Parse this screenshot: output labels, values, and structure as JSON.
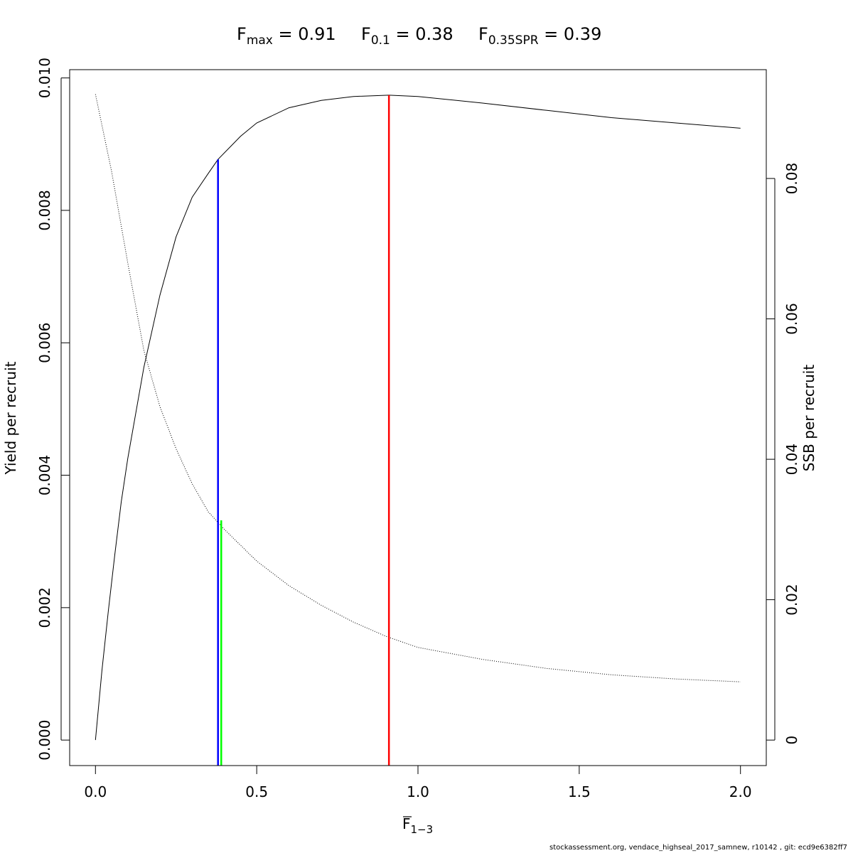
{
  "chart_data": {
    "type": "line",
    "title": {
      "fmax": {
        "base": "F",
        "sub": "max",
        "rest": " = 0.91"
      },
      "f01": {
        "base": "F",
        "sub": "0.1",
        "rest": " = 0.38"
      },
      "f35": {
        "base": "F",
        "sub": "0.35SPR",
        "rest": " = 0.39"
      }
    },
    "xlabel": {
      "base": "F",
      "sub": "1−3"
    },
    "ylabel_left": "Yield per recruit",
    "ylabel_right": "SSB per recruit",
    "xlim": [
      -0.08,
      2.08
    ],
    "ylim_left": [
      -0.000385,
      0.010125
    ],
    "ylim_right": [
      -0.00363,
      0.0955
    ],
    "x_ticks": [
      0.0,
      0.5,
      1.0,
      1.5,
      2.0
    ],
    "x_tick_labels": [
      "0.0",
      "0.5",
      "1.0",
      "1.5",
      "2.0"
    ],
    "y_left_ticks": [
      0.0,
      0.002,
      0.004,
      0.006,
      0.008,
      0.01
    ],
    "y_left_tick_labels": [
      "0.000",
      "0.002",
      "0.004",
      "0.006",
      "0.008",
      "0.010"
    ],
    "y_right_ticks": [
      0,
      0.02,
      0.04,
      0.06,
      0.08
    ],
    "y_right_tick_labels": [
      "0",
      "0.02",
      "0.04",
      "0.06",
      "0.08"
    ],
    "series": [
      {
        "axis": "left",
        "style": "solid",
        "color": "#000000",
        "x": [
          0,
          0.02,
          0.04,
          0.06,
          0.08,
          0.1,
          0.15,
          0.2,
          0.25,
          0.3,
          0.35,
          0.38,
          0.45,
          0.5,
          0.6,
          0.7,
          0.8,
          0.91,
          1.0,
          1.2,
          1.4,
          1.6,
          1.8,
          2.0
        ],
        "y": [
          0,
          0.00105,
          0.00195,
          0.0028,
          0.0036,
          0.00425,
          0.00563,
          0.00672,
          0.0076,
          0.0082,
          0.00856,
          0.00877,
          0.00912,
          0.00932,
          0.00955,
          0.00966,
          0.00972,
          0.00974,
          0.00972,
          0.00962,
          0.00951,
          0.0094,
          0.00932,
          0.00924
        ]
      },
      {
        "axis": "right",
        "style": "dotted",
        "color": "#000000",
        "x": [
          0,
          0.05,
          0.1,
          0.15,
          0.2,
          0.25,
          0.3,
          0.35,
          0.4,
          0.5,
          0.6,
          0.7,
          0.8,
          0.9,
          1.0,
          1.2,
          1.4,
          1.6,
          1.8,
          2.0
        ],
        "y": [
          0.092,
          0.081,
          0.068,
          0.0555,
          0.0475,
          0.0415,
          0.0365,
          0.0325,
          0.03,
          0.0255,
          0.022,
          0.0192,
          0.0168,
          0.0148,
          0.0132,
          0.0115,
          0.0102,
          0.0093,
          0.0087,
          0.0083
        ]
      }
    ],
    "reference_lines": [
      {
        "name": "F0.1",
        "x": 0.38,
        "y_top": 0.00877,
        "axis": "left",
        "color": "#0000ff"
      },
      {
        "name": "F0.35SPR",
        "x": 0.39,
        "y_top": 0.0313,
        "axis": "right",
        "color": "#00ff00"
      },
      {
        "name": "Fmax",
        "x": 0.91,
        "y_top": 0.00974,
        "axis": "left",
        "color": "#ff0000"
      }
    ]
  },
  "footer": "stockassessment.org, vendace_highseal_2017_samnew, r10142 , git: ecd9e6382ff7"
}
